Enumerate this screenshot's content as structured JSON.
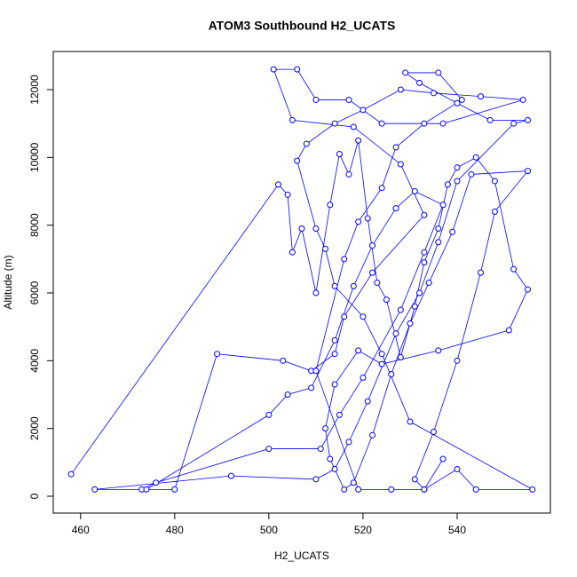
{
  "chart_data": {
    "type": "line",
    "markers": true,
    "title": "ATOM3 Southbound H2_UCATS",
    "x_label": "H2_UCATS",
    "y_label": "Altitude (m)",
    "color": "#0000ff",
    "x": [
      458,
      502,
      504,
      505,
      507,
      510,
      513,
      515,
      517,
      519,
      521,
      523,
      525,
      528,
      531,
      533,
      536,
      538,
      540,
      544,
      548,
      552,
      555,
      551,
      536,
      524,
      519,
      514,
      512,
      513,
      516,
      518,
      522,
      526,
      530,
      534,
      539,
      543,
      555,
      548,
      545,
      540,
      535,
      531,
      533,
      540,
      544,
      556,
      530,
      524,
      520,
      514,
      512,
      510,
      506,
      508,
      514,
      520,
      528,
      535,
      545,
      554,
      537,
      524,
      517,
      510,
      506,
      501,
      505,
      518,
      528,
      533,
      522,
      516,
      514,
      509,
      503,
      489,
      480,
      473,
      476,
      500,
      511,
      515,
      520,
      528,
      533,
      537,
      531,
      527,
      522,
      518,
      514,
      509,
      504,
      500,
      474,
      463,
      492,
      510,
      514,
      517,
      521,
      527,
      532,
      536,
      540,
      552,
      555,
      547,
      540,
      532,
      529,
      536,
      541,
      533,
      527,
      524,
      519,
      516,
      510,
      519,
      526,
      533,
      537
    ],
    "values": [
      650,
      9200,
      8900,
      7200,
      7900,
      6000,
      8600,
      10100,
      9500,
      10500,
      8200,
      6300,
      5800,
      4100,
      5600,
      6900,
      7900,
      9200,
      9700,
      10000,
      9300,
      6700,
      6100,
      4900,
      4300,
      3900,
      4300,
      3300,
      2000,
      1100,
      200,
      400,
      1800,
      3600,
      5100,
      6300,
      7800,
      9500,
      9600,
      8400,
      6600,
      4000,
      1900,
      500,
      200,
      800,
      200,
      200,
      2200,
      4200,
      5300,
      6200,
      7300,
      7900,
      9900,
      10400,
      11000,
      11400,
      12000,
      11900,
      11800,
      11700,
      11000,
      11000,
      11700,
      11700,
      12600,
      12600,
      11100,
      10900,
      9800,
      8300,
      6600,
      5300,
      4200,
      3700,
      4000,
      4200,
      200,
      200,
      400,
      1400,
      1400,
      2400,
      3500,
      5500,
      7200,
      8600,
      9000,
      8500,
      7400,
      6200,
      4600,
      3200,
      3000,
      2400,
      200,
      200,
      600,
      500,
      800,
      1600,
      2800,
      4800,
      6000,
      7500,
      9300,
      11000,
      11100,
      11100,
      11600,
      12200,
      12500,
      12500,
      11700,
      11000,
      10300,
      9100,
      8100,
      7000,
      3700,
      200,
      200,
      200,
      1100
    ],
    "xlim": [
      454.2,
      559.8
    ],
    "ylim": [
      -498,
      13127
    ],
    "xticks": [
      460,
      480,
      500,
      520,
      540
    ],
    "yticks": [
      0,
      2000,
      4000,
      6000,
      8000,
      10000,
      12000
    ]
  }
}
